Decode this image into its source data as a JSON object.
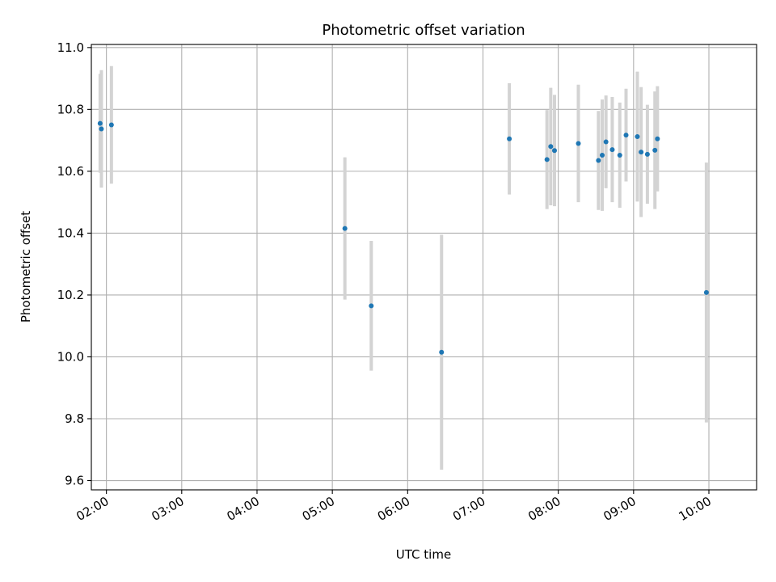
{
  "chart_data": {
    "type": "scatter",
    "title": "Photometric offset variation",
    "xlabel": "UTC time",
    "ylabel": "Photometric offset",
    "x_tick_labels": [
      "02:00",
      "03:00",
      "04:00",
      "05:00",
      "06:00",
      "07:00",
      "08:00",
      "09:00",
      "10:00"
    ],
    "x_tick_hours": [
      2,
      3,
      4,
      5,
      6,
      7,
      8,
      9,
      10
    ],
    "y_ticks": [
      9.6,
      9.8,
      10.0,
      10.2,
      10.4,
      10.6,
      10.8,
      11.0
    ],
    "y_tick_labels": [
      "9.6",
      "9.8",
      "10.0",
      "10.2",
      "10.4",
      "10.6",
      "10.8",
      "11.0"
    ],
    "xlim": [
      "01:48",
      "10:38"
    ],
    "ylim": [
      9.57,
      11.01
    ],
    "grid": true,
    "colors": {
      "marker": "#1f77b4",
      "errorbar": "#d3d3d3",
      "grid": "#b0b0b0"
    },
    "points": [
      {
        "time": "01:55",
        "y": 10.755,
        "err": 0.16
      },
      {
        "time": "01:56",
        "y": 10.737,
        "err": 0.19
      },
      {
        "time": "02:04",
        "y": 10.75,
        "err": 0.19
      },
      {
        "time": "05:10",
        "y": 10.415,
        "err": 0.23
      },
      {
        "time": "05:31",
        "y": 10.165,
        "err": 0.21
      },
      {
        "time": "06:27",
        "y": 10.015,
        "err": 0.38
      },
      {
        "time": "07:21",
        "y": 10.705,
        "err": 0.18
      },
      {
        "time": "07:51",
        "y": 10.638,
        "err": 0.16
      },
      {
        "time": "07:54",
        "y": 10.68,
        "err": 0.19
      },
      {
        "time": "07:57",
        "y": 10.667,
        "err": 0.18
      },
      {
        "time": "08:16",
        "y": 10.69,
        "err": 0.19
      },
      {
        "time": "08:32",
        "y": 10.635,
        "err": 0.16
      },
      {
        "time": "08:35",
        "y": 10.652,
        "err": 0.18
      },
      {
        "time": "08:38",
        "y": 10.695,
        "err": 0.15
      },
      {
        "time": "08:43",
        "y": 10.67,
        "err": 0.17
      },
      {
        "time": "08:49",
        "y": 10.652,
        "err": 0.17
      },
      {
        "time": "08:54",
        "y": 10.717,
        "err": 0.15
      },
      {
        "time": "09:03",
        "y": 10.712,
        "err": 0.21
      },
      {
        "time": "09:06",
        "y": 10.662,
        "err": 0.21
      },
      {
        "time": "09:11",
        "y": 10.655,
        "err": 0.16
      },
      {
        "time": "09:17",
        "y": 10.668,
        "err": 0.19
      },
      {
        "time": "09:19",
        "y": 10.705,
        "err": 0.17
      },
      {
        "time": "09:58",
        "y": 10.208,
        "err": 0.42
      }
    ]
  }
}
